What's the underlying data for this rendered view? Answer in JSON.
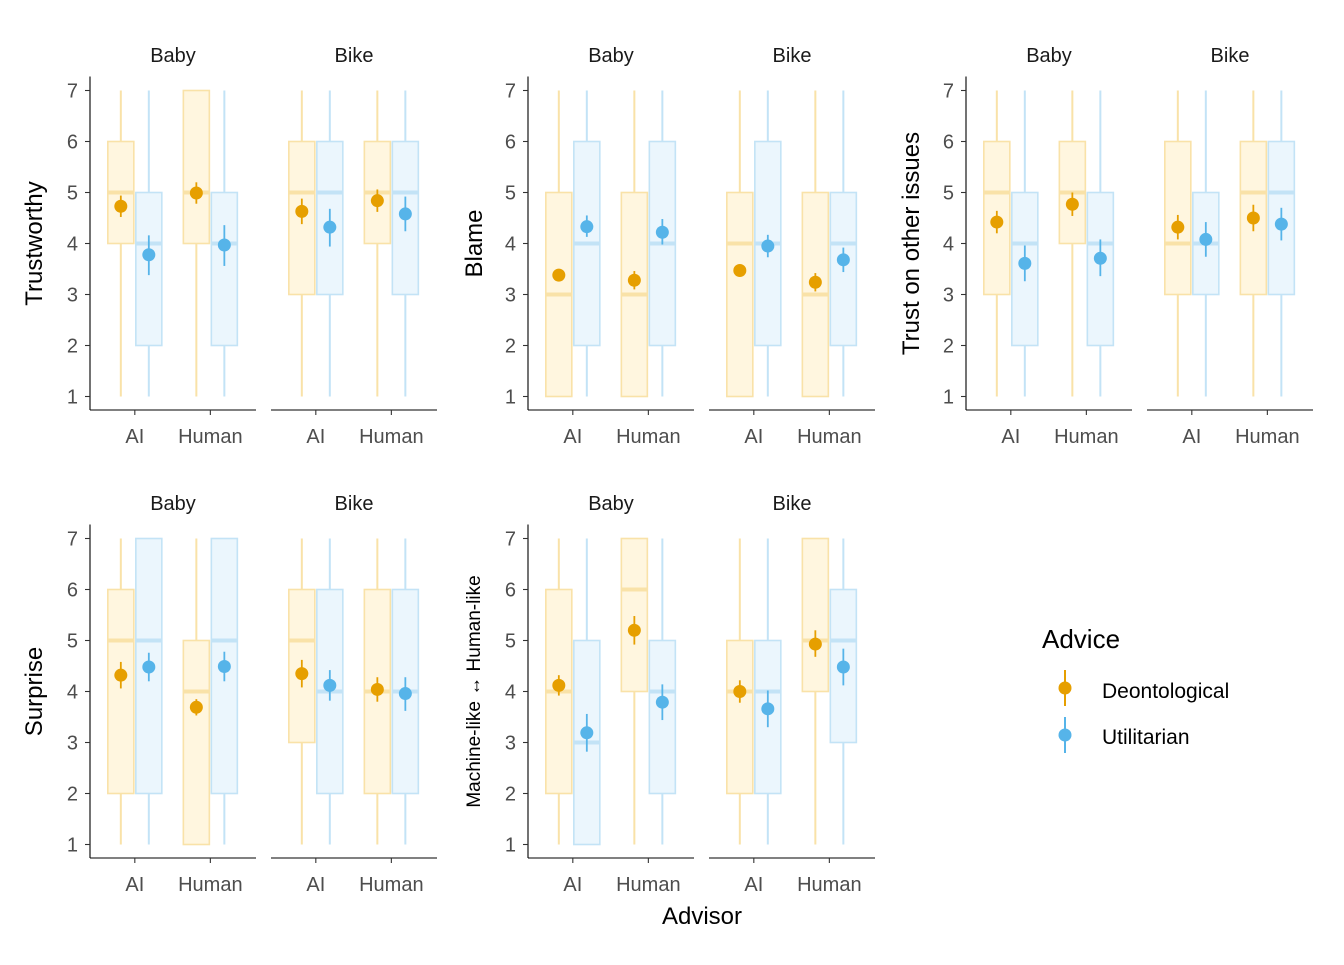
{
  "colors": {
    "deontological": "#E69F00",
    "utilitarian": "#56B4E9",
    "deontological_fill": "#FFF6DF",
    "utilitarian_fill": "#EBF6FD",
    "deontological_line": "#F9E2A8",
    "utilitarian_line": "#C3E3F6",
    "axis": "#000000",
    "tick_text": "#4d4d4d"
  },
  "legend": {
    "title": "Advice",
    "items": [
      {
        "label": "Deontological",
        "key": "deontological"
      },
      {
        "label": "Utilitarian",
        "key": "utilitarian"
      }
    ]
  },
  "x_axis_title": "Advisor",
  "chart_data": [
    {
      "type": "boxplot with mean and error bars",
      "ylabel": "Trustworthy",
      "ylim": [
        1,
        7
      ],
      "y_ticks": [
        "1",
        "2",
        "3",
        "4",
        "5",
        "6",
        "7"
      ],
      "categories": [
        "AI",
        "Human"
      ],
      "facets": [
        {
          "strip": "Baby",
          "groups": [
            {
              "advisor": "AI",
              "advice": "Deontological",
              "whisker": [
                1,
                7
              ],
              "box": [
                4,
                6
              ],
              "median": 5,
              "mean": 4.73,
              "ci": [
                4.52,
                4.94
              ]
            },
            {
              "advisor": "AI",
              "advice": "Utilitarian",
              "whisker": [
                1,
                7
              ],
              "box": [
                2,
                5
              ],
              "median": 4,
              "mean": 3.78,
              "ci": [
                3.38,
                4.16
              ]
            },
            {
              "advisor": "Human",
              "advice": "Deontological",
              "whisker": [
                1,
                7
              ],
              "box": [
                4,
                7
              ],
              "median": 5,
              "mean": 4.99,
              "ci": [
                4.78,
                5.2
              ]
            },
            {
              "advisor": "Human",
              "advice": "Utilitarian",
              "whisker": [
                1,
                7
              ],
              "box": [
                2,
                5
              ],
              "median": 4,
              "mean": 3.97,
              "ci": [
                3.56,
                4.36
              ]
            }
          ]
        },
        {
          "strip": "Bike",
          "groups": [
            {
              "advisor": "AI",
              "advice": "Deontological",
              "whisker": [
                1,
                7
              ],
              "box": [
                3,
                6
              ],
              "median": 5,
              "mean": 4.63,
              "ci": [
                4.38,
                4.88
              ]
            },
            {
              "advisor": "AI",
              "advice": "Utilitarian",
              "whisker": [
                1,
                7
              ],
              "box": [
                3,
                6
              ],
              "median": 5,
              "mean": 4.32,
              "ci": [
                3.94,
                4.68
              ]
            },
            {
              "advisor": "Human",
              "advice": "Deontological",
              "whisker": [
                1,
                7
              ],
              "box": [
                4,
                6
              ],
              "median": 5,
              "mean": 4.84,
              "ci": [
                4.62,
                5.06
              ]
            },
            {
              "advisor": "Human",
              "advice": "Utilitarian",
              "whisker": [
                1,
                7
              ],
              "box": [
                3,
                6
              ],
              "median": 5,
              "mean": 4.58,
              "ci": [
                4.24,
                4.92
              ]
            }
          ]
        }
      ]
    },
    {
      "type": "boxplot with mean and error bars",
      "ylabel": "Blame",
      "ylim": [
        1,
        7
      ],
      "y_ticks": [
        "1",
        "2",
        "3",
        "4",
        "5",
        "6",
        "7"
      ],
      "categories": [
        "AI",
        "Human"
      ],
      "facets": [
        {
          "strip": "Baby",
          "groups": [
            {
              "advisor": "AI",
              "advice": "Deontological",
              "whisker": [
                1,
                7
              ],
              "box": [
                1,
                5
              ],
              "median": 3,
              "mean": 3.38,
              "ci": [
                3.26,
                3.5
              ]
            },
            {
              "advisor": "AI",
              "advice": "Utilitarian",
              "whisker": [
                1,
                7
              ],
              "box": [
                2,
                6
              ],
              "median": 4,
              "mean": 4.33,
              "ci": [
                4.13,
                4.55
              ]
            },
            {
              "advisor": "Human",
              "advice": "Deontological",
              "whisker": [
                1,
                7
              ],
              "box": [
                1,
                5
              ],
              "median": 3,
              "mean": 3.28,
              "ci": [
                3.1,
                3.46
              ]
            },
            {
              "advisor": "Human",
              "advice": "Utilitarian",
              "whisker": [
                1,
                7
              ],
              "box": [
                2,
                6
              ],
              "median": 4,
              "mean": 4.22,
              "ci": [
                3.98,
                4.48
              ]
            }
          ]
        },
        {
          "strip": "Bike",
          "groups": [
            {
              "advisor": "AI",
              "advice": "Deontological",
              "whisker": [
                1,
                7
              ],
              "box": [
                1,
                5
              ],
              "median": 4,
              "mean": 3.47,
              "ci": [
                3.37,
                3.57
              ]
            },
            {
              "advisor": "AI",
              "advice": "Utilitarian",
              "whisker": [
                1,
                7
              ],
              "box": [
                2,
                6
              ],
              "median": 4,
              "mean": 3.95,
              "ci": [
                3.73,
                4.17
              ]
            },
            {
              "advisor": "Human",
              "advice": "Deontological",
              "whisker": [
                1,
                7
              ],
              "box": [
                1,
                5
              ],
              "median": 3,
              "mean": 3.24,
              "ci": [
                3.06,
                3.42
              ]
            },
            {
              "advisor": "Human",
              "advice": "Utilitarian",
              "whisker": [
                1,
                7
              ],
              "box": [
                2,
                5
              ],
              "median": 4,
              "mean": 3.68,
              "ci": [
                3.44,
                3.92
              ]
            }
          ]
        }
      ]
    },
    {
      "type": "boxplot with mean and error bars",
      "ylabel": "Trust on other issues",
      "ylim": [
        1,
        7
      ],
      "y_ticks": [
        "1",
        "2",
        "3",
        "4",
        "5",
        "6",
        "7"
      ],
      "categories": [
        "AI",
        "Human"
      ],
      "facets": [
        {
          "strip": "Baby",
          "groups": [
            {
              "advisor": "AI",
              "advice": "Deontological",
              "whisker": [
                1,
                7
              ],
              "box": [
                3,
                6
              ],
              "median": 5,
              "mean": 4.42,
              "ci": [
                4.2,
                4.64
              ]
            },
            {
              "advisor": "AI",
              "advice": "Utilitarian",
              "whisker": [
                1,
                7
              ],
              "box": [
                2,
                5
              ],
              "median": 4,
              "mean": 3.61,
              "ci": [
                3.26,
                3.96
              ]
            },
            {
              "advisor": "Human",
              "advice": "Deontological",
              "whisker": [
                1,
                7
              ],
              "box": [
                4,
                6
              ],
              "median": 5,
              "mean": 4.77,
              "ci": [
                4.54,
                5.0
              ]
            },
            {
              "advisor": "Human",
              "advice": "Utilitarian",
              "whisker": [
                1,
                7
              ],
              "box": [
                2,
                5
              ],
              "median": 4,
              "mean": 3.71,
              "ci": [
                3.36,
                4.08
              ]
            }
          ]
        },
        {
          "strip": "Bike",
          "groups": [
            {
              "advisor": "AI",
              "advice": "Deontological",
              "whisker": [
                1,
                7
              ],
              "box": [
                3,
                6
              ],
              "median": 4,
              "mean": 4.32,
              "ci": [
                4.08,
                4.56
              ]
            },
            {
              "advisor": "AI",
              "advice": "Utilitarian",
              "whisker": [
                1,
                7
              ],
              "box": [
                3,
                5
              ],
              "median": 4,
              "mean": 4.08,
              "ci": [
                3.74,
                4.42
              ]
            },
            {
              "advisor": "Human",
              "advice": "Deontological",
              "whisker": [
                1,
                7
              ],
              "box": [
                3,
                6
              ],
              "median": 5,
              "mean": 4.5,
              "ci": [
                4.24,
                4.76
              ]
            },
            {
              "advisor": "Human",
              "advice": "Utilitarian",
              "whisker": [
                1,
                7
              ],
              "box": [
                3,
                6
              ],
              "median": 5,
              "mean": 4.38,
              "ci": [
                4.06,
                4.7
              ]
            }
          ]
        }
      ]
    },
    {
      "type": "boxplot with mean and error bars",
      "ylabel": "Surprise",
      "ylim": [
        1,
        7
      ],
      "y_ticks": [
        "1",
        "2",
        "3",
        "4",
        "5",
        "6",
        "7"
      ],
      "categories": [
        "AI",
        "Human"
      ],
      "facets": [
        {
          "strip": "Baby",
          "groups": [
            {
              "advisor": "AI",
              "advice": "Deontological",
              "whisker": [
                1,
                7
              ],
              "box": [
                2,
                6
              ],
              "median": 5,
              "mean": 4.32,
              "ci": [
                4.06,
                4.58
              ]
            },
            {
              "advisor": "AI",
              "advice": "Utilitarian",
              "whisker": [
                1,
                7
              ],
              "box": [
                2,
                7
              ],
              "median": 5,
              "mean": 4.48,
              "ci": [
                4.2,
                4.76
              ]
            },
            {
              "advisor": "Human",
              "advice": "Deontological",
              "whisker": [
                1,
                7
              ],
              "box": [
                1,
                5
              ],
              "median": 4,
              "mean": 3.69,
              "ci": [
                3.53,
                3.85
              ]
            },
            {
              "advisor": "Human",
              "advice": "Utilitarian",
              "whisker": [
                1,
                7
              ],
              "box": [
                2,
                7
              ],
              "median": 5,
              "mean": 4.49,
              "ci": [
                4.2,
                4.78
              ]
            }
          ]
        },
        {
          "strip": "Bike",
          "groups": [
            {
              "advisor": "AI",
              "advice": "Deontological",
              "whisker": [
                1,
                7
              ],
              "box": [
                3,
                6
              ],
              "median": 5,
              "mean": 4.35,
              "ci": [
                4.08,
                4.62
              ]
            },
            {
              "advisor": "AI",
              "advice": "Utilitarian",
              "whisker": [
                1,
                7
              ],
              "box": [
                2,
                6
              ],
              "median": 4,
              "mean": 4.12,
              "ci": [
                3.82,
                4.42
              ]
            },
            {
              "advisor": "Human",
              "advice": "Deontological",
              "whisker": [
                1,
                7
              ],
              "box": [
                2,
                6
              ],
              "median": 4,
              "mean": 4.04,
              "ci": [
                3.8,
                4.28
              ]
            },
            {
              "advisor": "Human",
              "advice": "Utilitarian",
              "whisker": [
                1,
                7
              ],
              "box": [
                2,
                6
              ],
              "median": 4,
              "mean": 3.96,
              "ci": [
                3.62,
                4.28
              ]
            }
          ]
        }
      ]
    },
    {
      "type": "boxplot with mean and error bars",
      "ylabel": "Machine-like ↔ Human-like",
      "ylim": [
        1,
        7
      ],
      "y_ticks": [
        "1",
        "2",
        "3",
        "4",
        "5",
        "6",
        "7"
      ],
      "categories": [
        "AI",
        "Human"
      ],
      "facets": [
        {
          "strip": "Baby",
          "groups": [
            {
              "advisor": "AI",
              "advice": "Deontological",
              "whisker": [
                1,
                7
              ],
              "box": [
                2,
                6
              ],
              "median": 4,
              "mean": 4.12,
              "ci": [
                3.92,
                4.32
              ]
            },
            {
              "advisor": "AI",
              "advice": "Utilitarian",
              "whisker": [
                1,
                7
              ],
              "box": [
                1,
                5
              ],
              "median": 3,
              "mean": 3.19,
              "ci": [
                2.82,
                3.56
              ]
            },
            {
              "advisor": "Human",
              "advice": "Deontological",
              "whisker": [
                1,
                7
              ],
              "box": [
                4,
                7
              ],
              "median": 6,
              "mean": 5.2,
              "ci": [
                4.92,
                5.48
              ]
            },
            {
              "advisor": "Human",
              "advice": "Utilitarian",
              "whisker": [
                1,
                7
              ],
              "box": [
                2,
                5
              ],
              "median": 4,
              "mean": 3.79,
              "ci": [
                3.44,
                4.14
              ]
            }
          ]
        },
        {
          "strip": "Bike",
          "groups": [
            {
              "advisor": "AI",
              "advice": "Deontological",
              "whisker": [
                1,
                7
              ],
              "box": [
                2,
                5
              ],
              "median": 4,
              "mean": 4.0,
              "ci": [
                3.78,
                4.22
              ]
            },
            {
              "advisor": "AI",
              "advice": "Utilitarian",
              "whisker": [
                1,
                7
              ],
              "box": [
                2,
                5
              ],
              "median": 4,
              "mean": 3.66,
              "ci": [
                3.3,
                4.02
              ]
            },
            {
              "advisor": "Human",
              "advice": "Deontological",
              "whisker": [
                1,
                7
              ],
              "box": [
                4,
                7
              ],
              "median": 5,
              "mean": 4.93,
              "ci": [
                4.68,
                5.2
              ]
            },
            {
              "advisor": "Human",
              "advice": "Utilitarian",
              "whisker": [
                1,
                7
              ],
              "box": [
                3,
                6
              ],
              "median": 5,
              "mean": 4.48,
              "ci": [
                4.12,
                4.84
              ]
            }
          ]
        }
      ]
    }
  ]
}
